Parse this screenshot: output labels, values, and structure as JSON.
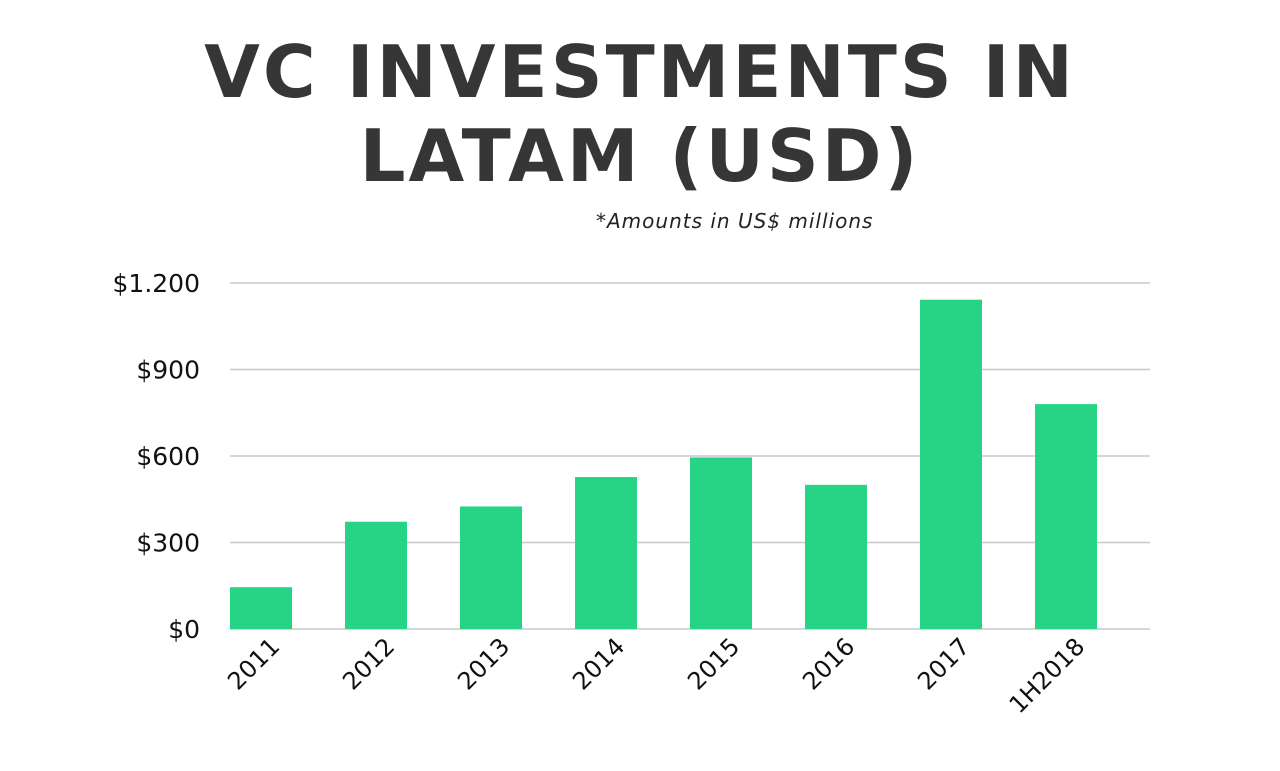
{
  "header": {
    "title_lines": [
      "VC INVESTMENTS IN",
      "LATAM (USD)"
    ],
    "subtitle": "*Amounts in US$ millions"
  },
  "chart_data": {
    "type": "bar",
    "title": "VC INVESTMENTS IN LATAM (USD)",
    "subtitle": "*Amounts in US$ millions",
    "xlabel": "",
    "ylabel": "",
    "categories": [
      "2011",
      "2012",
      "2013",
      "2014",
      "2015",
      "2016",
      "2017",
      "1H2018"
    ],
    "values": [
      145,
      372,
      425,
      527,
      595,
      500,
      1142,
      780
    ],
    "ylim": [
      0,
      1200
    ],
    "yticks": [
      0,
      300,
      600,
      900,
      1200
    ],
    "ytick_labels": [
      "$0",
      "$300",
      "$600",
      "$900",
      "$1.200"
    ],
    "grid": true,
    "legend": "none",
    "bar_color": "#27d384",
    "grid_color": "#c8c8c8"
  }
}
